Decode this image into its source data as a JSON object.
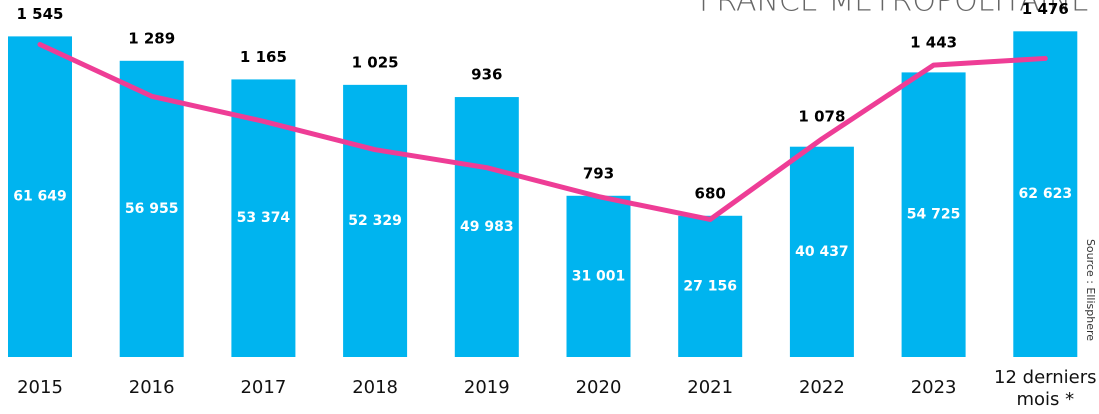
{
  "chart_data": {
    "type": "bar",
    "title": "FRANCE MÉTROPOLITAINE",
    "source": "Source : Ellisphere",
    "categories": [
      "2015",
      "2016",
      "2017",
      "2018",
      "2019",
      "2020",
      "2021",
      "2022",
      "2023",
      "12 derniers mois *"
    ],
    "ylim": [
      0,
      64800
    ],
    "y2lim": [
      0,
      1666
    ],
    "series": [
      {
        "type": "bar",
        "color": "#00b4ef",
        "values": [
          61649,
          56955,
          53374,
          52329,
          49983,
          31001,
          27156,
          40437,
          54725,
          62623
        ],
        "value_labels": [
          "61 649",
          "56 955",
          "53 374",
          "52 329",
          "49 983",
          "31 001",
          "27 156",
          "40 437",
          "54 725",
          "62 623"
        ]
      },
      {
        "type": "line",
        "axis": "y2",
        "color": "#ee3d96",
        "values": [
          1545,
          1289,
          1165,
          1025,
          936,
          793,
          680,
          1078,
          1443,
          1476
        ],
        "value_labels": [
          "1 545",
          "1 289",
          "1 165",
          "1 025",
          "936",
          "793",
          "680",
          "1 078",
          "1 443",
          "1 476"
        ]
      }
    ]
  }
}
